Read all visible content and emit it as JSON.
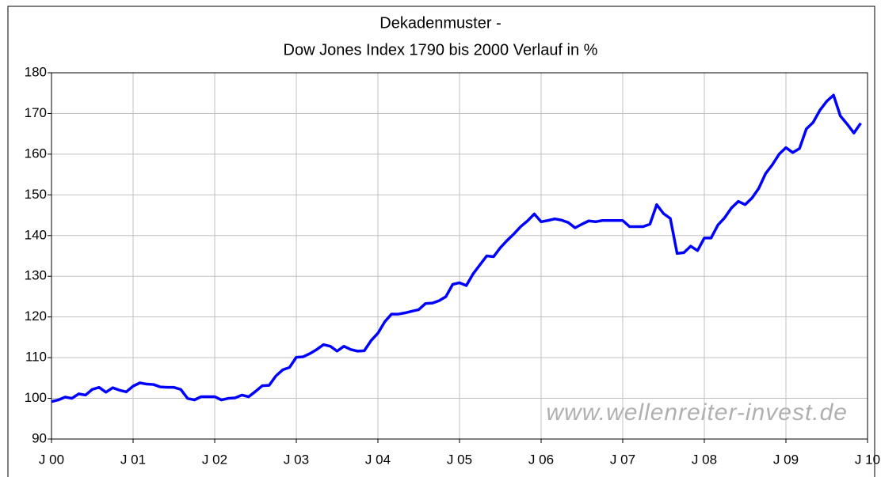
{
  "chart_data": {
    "type": "line",
    "title": "Dekadenmuster -",
    "subtitle": "Dow Jones Index 1790 bis 2000 Verlauf in %",
    "annotation": "www.wellenreiter-invest.de",
    "x": [
      0,
      1,
      2,
      3,
      4,
      5,
      6,
      7,
      8,
      9,
      10,
      11,
      12,
      13,
      14,
      15,
      16,
      17,
      18,
      19,
      20,
      21,
      22,
      23,
      24,
      25,
      26,
      27,
      28,
      29,
      30,
      31,
      32,
      33,
      34,
      35,
      36,
      37,
      38,
      39,
      40,
      41,
      42,
      43,
      44,
      45,
      46,
      47,
      48,
      49,
      50,
      51,
      52,
      53,
      54,
      55,
      56,
      57,
      58,
      59,
      60,
      61,
      62,
      63,
      64,
      65,
      66,
      67,
      68,
      69,
      70,
      71,
      72,
      73,
      74,
      75,
      76,
      77,
      78,
      79,
      80,
      81,
      82,
      83,
      84,
      85,
      86,
      87,
      88,
      89,
      90,
      91,
      92,
      93,
      94,
      95,
      96,
      97,
      98,
      99,
      100,
      101,
      102,
      103,
      104,
      105,
      106,
      107,
      108,
      109,
      110,
      111,
      112,
      113,
      114,
      115,
      116,
      117,
      118,
      119
    ],
    "series": [
      {
        "name": "Dow Jones",
        "color": "#0000ff",
        "values": [
          99.2,
          99.6,
          100.3,
          100.0,
          101.1,
          100.8,
          102.2,
          102.7,
          101.5,
          102.6,
          102.0,
          101.6,
          103.0,
          103.8,
          103.5,
          103.4,
          102.8,
          102.7,
          102.7,
          102.2,
          100.0,
          99.6,
          100.4,
          100.4,
          100.4,
          99.6,
          100.0,
          100.1,
          100.8,
          100.4,
          101.7,
          103.1,
          103.2,
          105.5,
          107.0,
          107.6,
          110.1,
          110.2,
          111.0,
          112.0,
          113.2,
          112.8,
          111.6,
          112.8,
          112.0,
          111.6,
          111.7,
          114.2,
          116.0,
          118.8,
          120.7,
          120.7,
          121.0,
          121.4,
          121.8,
          123.3,
          123.4,
          124.0,
          125.0,
          128.0,
          128.4,
          127.7,
          130.6,
          132.8,
          135.0,
          134.8,
          137.0,
          138.8,
          140.4,
          142.2,
          143.6,
          145.3,
          143.4,
          143.7,
          144.1,
          143.8,
          143.2,
          141.9,
          142.8,
          143.6,
          143.4,
          143.7,
          143.7,
          143.7,
          143.7,
          142.2,
          142.2,
          142.2,
          142.8,
          147.6,
          145.4,
          144.2,
          135.6,
          135.8,
          137.4,
          136.3,
          139.4,
          139.4,
          142.6,
          144.4,
          146.8,
          148.4,
          147.6,
          149.2,
          151.6,
          155.2,
          157.4,
          160.0,
          161.6,
          160.4,
          161.4,
          166.2,
          167.8,
          170.8,
          173.0,
          174.5,
          169.4,
          167.4,
          165.2,
          167.6
        ]
      }
    ],
    "xlim": [
      0,
      120
    ],
    "xticks": [
      {
        "value": 0,
        "label": "J 00"
      },
      {
        "value": 12,
        "label": "J 01"
      },
      {
        "value": 24,
        "label": "J 02"
      },
      {
        "value": 36,
        "label": "J 03"
      },
      {
        "value": 48,
        "label": "J 04"
      },
      {
        "value": 60,
        "label": "J 05"
      },
      {
        "value": 72,
        "label": "J 06"
      },
      {
        "value": 84,
        "label": "J 07"
      },
      {
        "value": 96,
        "label": "J 08"
      },
      {
        "value": 108,
        "label": "J 09"
      },
      {
        "value": 120,
        "label": "J 10"
      }
    ],
    "ylim": [
      90,
      180
    ],
    "yticks": [
      90,
      100,
      110,
      120,
      130,
      140,
      150,
      160,
      170,
      180
    ],
    "grid": true
  }
}
